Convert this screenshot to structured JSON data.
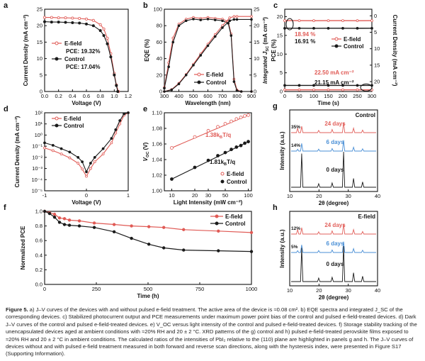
{
  "colors": {
    "efield": "#e05a55",
    "control": "#1a1a1a",
    "xrd_efield": "#e2625d",
    "xrd_6days": "#4a8fd6",
    "xrd_0days": "#1a1a1a"
  },
  "panels": [
    {
      "id": "a",
      "letter": "a",
      "type": "line",
      "xlabel": "Voltage (V)",
      "ylabel": "Current Density (mA cm⁻²)",
      "xlim": [
        0.0,
        1.2
      ],
      "ylim": [
        0,
        25
      ],
      "xticks": [
        "0.0",
        "0.2",
        "0.4",
        "0.6",
        "0.8",
        "1.0",
        "1.2"
      ],
      "yticks": [
        "0",
        "5",
        "10",
        "15",
        "20",
        "25"
      ],
      "series": [
        {
          "name": "E-field",
          "x": [
            0,
            0.1,
            0.2,
            0.3,
            0.4,
            0.5,
            0.6,
            0.7,
            0.8,
            0.85,
            0.9,
            0.95,
            1.0,
            1.03,
            1.06
          ],
          "y": [
            22.5,
            22.5,
            22.4,
            22.4,
            22.3,
            22.2,
            22.0,
            21.6,
            20.3,
            19.0,
            16.2,
            11.5,
            5.5,
            2.0,
            0
          ]
        },
        {
          "name": "Control",
          "x": [
            0,
            0.1,
            0.2,
            0.3,
            0.4,
            0.5,
            0.6,
            0.7,
            0.8,
            0.85,
            0.9,
            0.95,
            1.0,
            1.03,
            1.05
          ],
          "y": [
            21.2,
            21.1,
            21.1,
            21.0,
            20.9,
            20.8,
            20.5,
            20.0,
            18.5,
            17.0,
            14.5,
            10.5,
            5.0,
            1.8,
            0
          ]
        }
      ],
      "legend": [
        "E-field",
        "Control"
      ],
      "annotations": [
        "PCE: 19.32%",
        "PCE: 17.04%"
      ]
    },
    {
      "id": "b",
      "letter": "b",
      "type": "line",
      "xlabel": "Wavelength (nm)",
      "ylabel": "EQE (%)",
      "ylabel_right": "Integrated J_SC (mA cm⁻²)",
      "ylabel_right_main": "Integrated J",
      "ylabel_right_sub": "SC",
      "ylabel_right_tail": " (mA cm⁻²)",
      "xlim": [
        300,
        900
      ],
      "ylim": [
        0,
        100
      ],
      "ylim_right": [
        0,
        25
      ],
      "xticks": [
        "300",
        "400",
        "500",
        "600",
        "700",
        "800",
        "900"
      ],
      "yticks": [
        "0",
        "20",
        "40",
        "60",
        "80",
        "100"
      ],
      "yticks_right": [
        "0",
        "5",
        "10",
        "15",
        "20",
        "25"
      ],
      "series": [
        {
          "name": "E-field EQE",
          "x": [
            300,
            330,
            360,
            400,
            450,
            500,
            550,
            600,
            650,
            700,
            740,
            760,
            780,
            800,
            830,
            900
          ],
          "y": [
            5,
            35,
            65,
            82,
            88,
            90,
            89,
            90,
            89,
            88,
            85,
            70,
            15,
            2,
            0,
            0
          ]
        },
        {
          "name": "Control EQE",
          "x": [
            300,
            330,
            360,
            400,
            450,
            500,
            550,
            600,
            650,
            700,
            740,
            760,
            780,
            800,
            830,
            900
          ],
          "y": [
            4,
            30,
            60,
            80,
            86,
            88,
            87,
            88,
            87,
            86,
            83,
            68,
            12,
            1,
            0,
            0
          ]
        },
        {
          "name": "E-field J_SC",
          "x": [
            300,
            350,
            400,
            450,
            500,
            550,
            600,
            650,
            700,
            750,
            780,
            800,
            900
          ],
          "y": [
            0,
            0.6,
            2.5,
            5.2,
            8.3,
            11.4,
            14.4,
            17.3,
            20.0,
            22.4,
            22.8,
            22.8,
            22.8
          ]
        },
        {
          "name": "Control J_SC",
          "x": [
            300,
            350,
            400,
            450,
            500,
            550,
            600,
            650,
            700,
            750,
            780,
            800,
            900
          ],
          "y": [
            0,
            0.5,
            2.3,
            5.0,
            8.0,
            11.0,
            13.9,
            16.7,
            19.4,
            21.5,
            21.9,
            21.9,
            21.9
          ]
        }
      ],
      "legend": [
        "E-field",
        "Control"
      ]
    },
    {
      "id": "c",
      "letter": "c",
      "type": "line",
      "xlabel": "Time (s)",
      "ylabel": "PCE (%)",
      "ylabel_right": "Current Density (mA cm⁻²)",
      "xlim": [
        0,
        300
      ],
      "ylim": [
        0,
        20
      ],
      "ylim_right": [
        20,
        0
      ],
      "xticks": [
        "0",
        "50",
        "100",
        "150",
        "200",
        "250",
        "300"
      ],
      "yticks": [
        "0",
        "5",
        "10",
        "15",
        "20"
      ],
      "yticks_right": [
        "0",
        "5",
        "10",
        "15",
        "20"
      ],
      "series": [
        {
          "name": "E-field PCE",
          "x": [
            0,
            50,
            100,
            150,
            200,
            250,
            300
          ],
          "y": [
            18.94,
            18.94,
            18.93,
            18.94,
            18.94,
            18.93,
            18.94
          ]
        },
        {
          "name": "Control PCE",
          "x": [
            0,
            50,
            100,
            150,
            200,
            250,
            300
          ],
          "y": [
            16.91,
            16.91,
            16.9,
            16.91,
            16.91,
            16.9,
            16.91
          ]
        },
        {
          "name": "E-field J",
          "x": [
            0,
            50,
            100,
            150,
            200,
            250,
            300
          ],
          "y": [
            22.5,
            22.5,
            22.5,
            22.5,
            22.5,
            22.5,
            22.5
          ]
        },
        {
          "name": "Control J",
          "x": [
            0,
            50,
            100,
            150,
            200,
            250,
            300
          ],
          "y": [
            21.15,
            21.15,
            21.15,
            21.15,
            21.15,
            21.15,
            21.15
          ]
        }
      ],
      "legend": [
        "E-field",
        "Control"
      ],
      "annotations": [
        "18.94 %",
        "16.91 %",
        "22.50 mA cm⁻²",
        "21.15 mA cm⁻²"
      ]
    },
    {
      "id": "d",
      "letter": "d",
      "type": "scatter",
      "xlabel": "Voltage (V)",
      "ylabel": "Current Density (mA cm⁻²)",
      "xlim": [
        -1,
        1
      ],
      "ylim_log": [
        -5,
        2
      ],
      "xticks": [
        "-1",
        "0",
        "1"
      ],
      "yticks": [
        "10⁻⁵",
        "10⁻⁴",
        "10⁻³",
        "10⁻²",
        "10⁻¹",
        "10⁰",
        "10¹",
        "10²"
      ],
      "series": [
        {
          "name": "E-field",
          "x": [
            -1,
            -0.8,
            -0.6,
            -0.4,
            -0.2,
            -0.1,
            0,
            0.1,
            0.2,
            0.4,
            0.6,
            0.7,
            0.8,
            0.9,
            1.0
          ],
          "y": [
            0.07,
            0.04,
            0.02,
            0.009,
            0.003,
            0.0009,
            0.0002,
            0.001,
            0.004,
            0.02,
            0.2,
            1.5,
            10,
            60,
            100
          ]
        },
        {
          "name": "Control",
          "x": [
            -1,
            -0.8,
            -0.6,
            -0.4,
            -0.2,
            -0.1,
            0,
            0.1,
            0.2,
            0.4,
            0.6,
            0.7,
            0.8,
            0.9,
            1.0
          ],
          "y": [
            0.2,
            0.12,
            0.06,
            0.03,
            0.01,
            0.004,
            0.0005,
            0.003,
            0.01,
            0.06,
            0.5,
            3,
            20,
            80,
            100
          ]
        }
      ],
      "legend": [
        "E-field",
        "Control"
      ]
    },
    {
      "id": "e",
      "letter": "e",
      "type": "scatter",
      "xlabel": "Light Intensity (mW cm⁻²)",
      "ylabel": "V_OC (V)",
      "ylabel_main": "V",
      "ylabel_sub": "OC",
      "ylabel_tail": " (V)",
      "xlim_log": [
        8,
        110
      ],
      "ylim": [
        1.0,
        1.1
      ],
      "xticks": [
        "10",
        "20",
        "30",
        "50",
        "100"
      ],
      "xtick_values": [
        10,
        20,
        30,
        50,
        100
      ],
      "yticks": [
        "1.00",
        "1.02",
        "1.04",
        "1.06",
        "1.08",
        "1.10"
      ],
      "series": [
        {
          "name": "E-field",
          "x": [
            10,
            20,
            30,
            40,
            50,
            60,
            70,
            80,
            90,
            100
          ],
          "y": [
            1.055,
            1.069,
            1.077,
            1.082,
            1.086,
            1.089,
            1.092,
            1.094,
            1.096,
            1.097
          ]
        },
        {
          "name": "Control",
          "x": [
            10,
            20,
            30,
            40,
            50,
            60,
            70,
            80,
            90,
            100
          ],
          "y": [
            1.015,
            1.03,
            1.039,
            1.045,
            1.049,
            1.053,
            1.056,
            1.058,
            1.061,
            1.063
          ]
        }
      ],
      "legend": [
        "E-field",
        "Control"
      ],
      "annotations": [
        "1.38k_BT/q",
        "1.81k_BT/q"
      ],
      "ann_efield": {
        "num": "1.38k",
        "sub": "B",
        "tail": "T/q"
      },
      "ann_control": {
        "num": "1.81k",
        "sub": "B",
        "tail": "T/q"
      }
    },
    {
      "id": "f",
      "letter": "f",
      "type": "line",
      "xlabel": "Time (h)",
      "ylabel": "Normalized PCE",
      "xlim": [
        0,
        1000
      ],
      "ylim": [
        0.0,
        1.0
      ],
      "xticks": [
        "0",
        "250",
        "500",
        "750",
        "1000"
      ],
      "yticks": [
        "0.0",
        "0.2",
        "0.4",
        "0.6",
        "0.8",
        "1.0"
      ],
      "series": [
        {
          "name": "E-field",
          "x": [
            0,
            24,
            48,
            72,
            96,
            120,
            168,
            240,
            336,
            420,
            504,
            576,
            672,
            840,
            1000
          ],
          "y": [
            1.0,
            0.98,
            0.96,
            0.91,
            0.9,
            0.88,
            0.87,
            0.84,
            0.82,
            0.8,
            0.79,
            0.78,
            0.75,
            0.73,
            0.71
          ]
        },
        {
          "name": "Control",
          "x": [
            0,
            24,
            48,
            72,
            96,
            120,
            168,
            240,
            336,
            420,
            504,
            576,
            672,
            840,
            1000
          ],
          "y": [
            1.0,
            0.97,
            0.92,
            0.85,
            0.82,
            0.81,
            0.8,
            0.78,
            0.72,
            0.63,
            0.55,
            0.5,
            0.47,
            0.46,
            0.45
          ]
        }
      ],
      "legend": [
        "E-field",
        "Control"
      ]
    },
    {
      "id": "g",
      "letter": "g",
      "type": "line",
      "xlabel": "2θ (degree)",
      "ylabel": "Intensity (a.u.)",
      "xlim": [
        10,
        40
      ],
      "xticks": [
        "10",
        "20",
        "30",
        "40"
      ],
      "title": "Control",
      "traces": [
        "24 days",
        "6 days",
        "0 days"
      ],
      "ratios": [
        "35%",
        "14%"
      ]
    },
    {
      "id": "h",
      "letter": "h",
      "type": "line",
      "xlabel": "2θ (degree)",
      "ylabel": "Intensity (a.u.)",
      "xlim": [
        10,
        40
      ],
      "xticks": [
        "10",
        "20",
        "30",
        "40"
      ],
      "title": "E-field",
      "traces": [
        "24 days",
        "6 days",
        "0 days"
      ],
      "ratios": [
        "12%",
        "5%"
      ]
    }
  ],
  "xrd_peaks": [
    {
      "x": 12.7,
      "h24": 0.35,
      "h6": 0.14,
      "h0": 0.0
    },
    {
      "x": 14.1,
      "h24": 0.5,
      "h6": 0.6,
      "h0": 0.95
    },
    {
      "x": 19.9,
      "h24": 0.18,
      "h6": 0.15,
      "h0": 0.1
    },
    {
      "x": 24.5,
      "h24": 0.25,
      "h6": 0.2,
      "h0": 0.12
    },
    {
      "x": 28.4,
      "h24": 0.8,
      "h6": 0.85,
      "h0": 1.0
    },
    {
      "x": 31.8,
      "h24": 0.35,
      "h6": 0.3,
      "h0": 0.25
    },
    {
      "x": 34.9,
      "h24": 0.2,
      "h6": 0.18,
      "h0": 0.15
    },
    {
      "x": 40.4,
      "h24": 0.2,
      "h6": 0.18,
      "h0": 0.15
    }
  ],
  "caption": {
    "label": "Figure 5.",
    "text": " a) J–V curves of the devices with and without pulsed e-field treatment. The active area of the device is ≈0.08 cm². b) EQE spectra and integrated J_SC of the corresponding devices. c) Stabilized photocurrent output and PCE measurements under maximum power point bias of the control and pulsed e-field-treated devices. d) Dark J–V curves of the control and pulsed e-field-treated devices. e) V_OC versus light intensity of the control and pulsed e-field-treated devices. f) Storage stability tracking of the unencapsulated devices aged at ambient conditions with ≈20% RH and 20 ± 2 °C. XRD patterns of the g) control and h) pulsed e-field-treated perovskite films exposed to ≈20% RH and 20 ± 2 °C in ambient conditions. The calculated ratios of the intensities of PbI₂ relative to the (110) plane are highlighted in panels g and h. The J–V curves of devices without and with pulsed e-field treatment measured in both forward and reverse scan directions, along with the hysteresis index, were presented in Figure S17 (Supporting Information)."
  }
}
